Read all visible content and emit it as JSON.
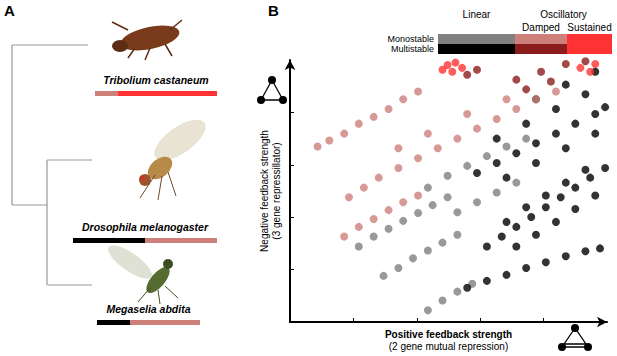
{
  "panel_labels": [
    "A",
    "B"
  ],
  "panel_a": {
    "scale": [
      0,
      144
    ],
    "species": [
      {
        "name": "Tribolium castaneum",
        "segments": [
          {
            "color": "#cd7f7a",
            "range": [
              22,
              45
            ]
          },
          {
            "color": "#ff3333",
            "range": [
              45,
              144
            ]
          }
        ]
      },
      {
        "name": "Drosophila melanogaster",
        "segments": [
          {
            "color": "#000000",
            "range": [
              0,
              72
            ]
          },
          {
            "color": "#cd7f7a",
            "range": [
              72,
              144
            ]
          }
        ]
      },
      {
        "name": "Megaselia abdita",
        "segments": [
          {
            "color": "#000000",
            "range": [
              24,
              57
            ]
          },
          {
            "color": "#cd7f7a",
            "range": [
              57,
              127
            ]
          }
        ]
      }
    ]
  },
  "color_key": {
    "columns": [
      "Linear",
      "Oscillatory"
    ],
    "oscillatory_kinds": [
      "Damped",
      "Sustained"
    ],
    "rows": [
      "Monostable",
      "Multistable"
    ]
  },
  "chart_data": {
    "type": "scatter",
    "xlabel": [
      "Positive feedback strength",
      "(2 gene mutual repression)"
    ],
    "ylabel": [
      "Negative feedback strength",
      "(3 gene repressillator)"
    ],
    "xlim": [
      0,
      10
    ],
    "ylim": [
      0,
      10
    ],
    "xticks": [
      2,
      4,
      6,
      8
    ],
    "yticks": [
      2,
      4,
      6,
      8
    ],
    "tick_labels": false,
    "grid": false,
    "series": [
      {
        "column": "Linear",
        "stability": "Monostable",
        "color": "#808080",
        "x": [
          2.17,
          2.64,
          3.11,
          3.57,
          4.04,
          4.5,
          4.97,
          2.95,
          3.42,
          3.88,
          4.35,
          4.81,
          5.28,
          4.35,
          4.81,
          5.28,
          5.75,
          4.35,
          4.97,
          5.59,
          6.21,
          6.83,
          7.45,
          5.28,
          5.9,
          6.52,
          7.14
        ],
        "y": [
          2.88,
          3.26,
          3.56,
          3.86,
          4.16,
          4.46,
          4.76,
          1.76,
          2.06,
          2.43,
          2.73,
          3.03,
          3.33,
          0.45,
          0.82,
          1.16,
          1.46,
          5.13,
          5.58,
          5.96,
          6.33,
          6.7,
          7.0,
          4.19,
          4.57,
          4.94,
          5.32
        ]
      },
      {
        "column": "Linear",
        "stability": "Multistable",
        "color": "#000000",
        "x": [
          5.59,
          6.21,
          6.83,
          7.45,
          8.07,
          8.7,
          9.32,
          9.78,
          6.21,
          6.68,
          7.14,
          7.61,
          8.07,
          8.54,
          9.0,
          9.47,
          9.94,
          7.14,
          7.76,
          8.39,
          9.0,
          9.63,
          6.83,
          7.45,
          8.07,
          8.7,
          9.32,
          5.9,
          6.52,
          7.14,
          7.76,
          8.39,
          9.0,
          9.63,
          9.94,
          6.83,
          7.76,
          8.7,
          9.63,
          6.52,
          7.45,
          8.39,
          9.32,
          7.76,
          8.7,
          9.63
        ],
        "y": [
          1.31,
          1.57,
          1.8,
          2.06,
          2.28,
          2.51,
          2.7,
          2.81,
          2.88,
          3.26,
          3.63,
          4.01,
          4.38,
          4.76,
          5.13,
          5.51,
          5.88,
          2.88,
          3.33,
          3.82,
          4.31,
          4.83,
          3.82,
          4.38,
          4.83,
          5.32,
          5.81,
          5.69,
          6.07,
          6.44,
          6.82,
          7.19,
          7.57,
          7.94,
          8.2,
          5.51,
          6.07,
          6.63,
          7.19,
          7.0,
          7.57,
          8.13,
          8.69,
          8.5,
          9.06,
          9.55
        ]
      },
      {
        "column": "Damped",
        "stability": "Monostable",
        "color": "#cd7f7a",
        "x": [
          0.87,
          1.24,
          1.71,
          2.17,
          2.64,
          3.11,
          3.57,
          4.04,
          1.86,
          2.33,
          2.8,
          3.42,
          4.04,
          4.66,
          5.28,
          5.9,
          6.52,
          7.14,
          7.76,
          8.39,
          3.42,
          4.35,
          5.59,
          6.83,
          1.71,
          2.17,
          2.64,
          3.11,
          3.57,
          4.04
        ],
        "y": [
          6.7,
          6.93,
          7.19,
          7.57,
          7.83,
          8.13,
          8.5,
          8.8,
          4.76,
          5.13,
          5.51,
          5.88,
          6.25,
          6.63,
          7.0,
          7.38,
          7.75,
          8.13,
          8.5,
          8.8,
          6.63,
          7.19,
          7.94,
          8.5,
          3.26,
          3.63,
          3.93,
          4.27,
          4.57,
          4.83
        ]
      },
      {
        "column": "Damped",
        "stability": "Multistable",
        "color": "#8b1c1c",
        "x": [
          5.59,
          5.9,
          7.14,
          7.92,
          8.7,
          9.32,
          7.45,
          8.23
        ],
        "y": [
          9.44,
          9.63,
          9.25,
          9.55,
          9.85,
          9.95,
          8.88,
          9.18
        ]
      },
      {
        "column": "Sustained",
        "stability": [
          "Monostable",
          "Multistable"
        ],
        "color": "#ff3333",
        "x": [
          4.97,
          5.22,
          5.43,
          5.12,
          4.81,
          9.16,
          9.63,
          9.47
        ],
        "y": [
          9.81,
          9.9,
          9.7,
          9.55,
          9.63,
          9.7,
          9.85,
          9.55
        ]
      }
    ]
  }
}
